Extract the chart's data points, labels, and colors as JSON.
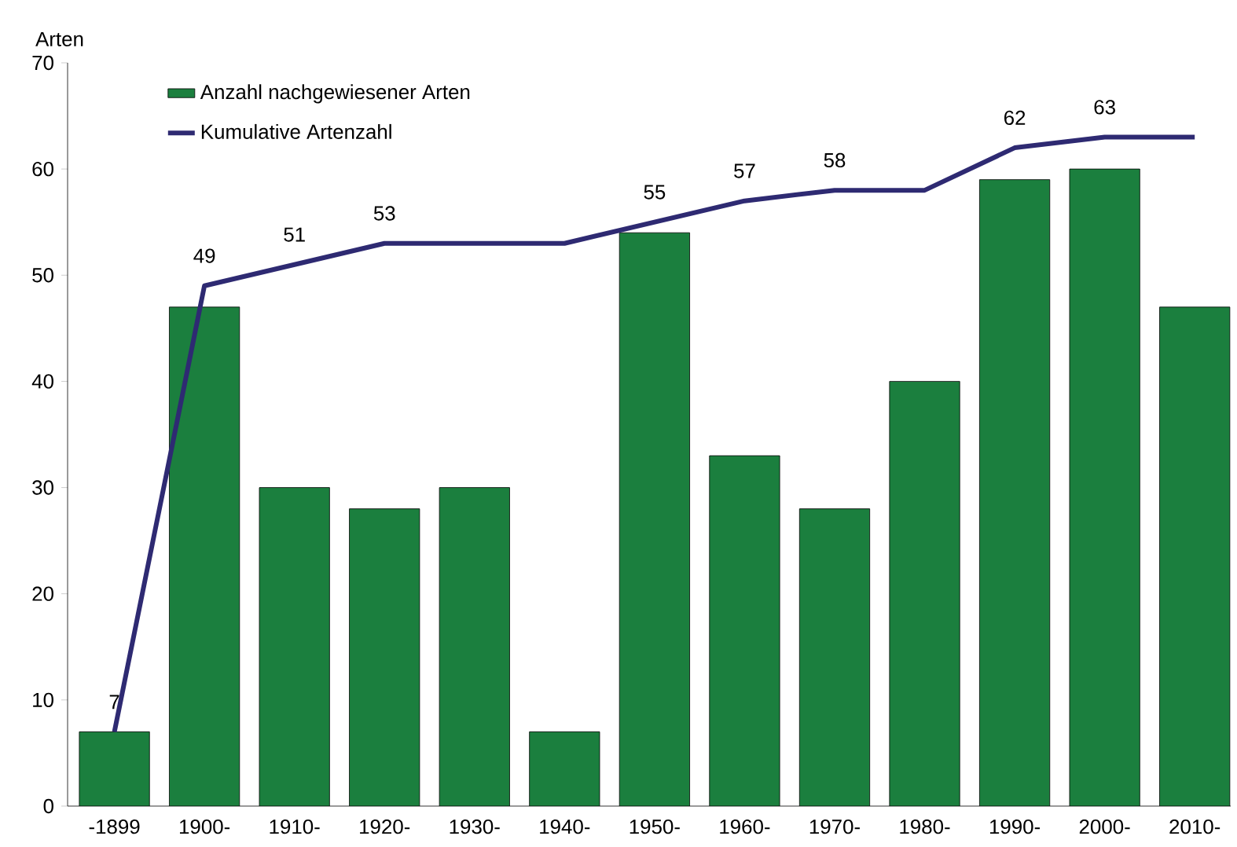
{
  "chart_data": {
    "type": "bar",
    "ylabel": "Arten",
    "categories": [
      "-1899",
      "1900-",
      "1910-",
      "1920-",
      "1930-",
      "1940-",
      "1950-",
      "1960-",
      "1970-",
      "1980-",
      "1990-",
      "2000-",
      "2010-"
    ],
    "ylim": [
      0,
      70
    ],
    "yticks": [
      0,
      10,
      20,
      30,
      40,
      50,
      60,
      70
    ],
    "legend": "top left",
    "series": [
      {
        "name": "Anzahl nachgewiesener Arten",
        "color": "#1b7f3e",
        "values": [
          7,
          47,
          30,
          28,
          30,
          7,
          54,
          33,
          28,
          40,
          59,
          60,
          47
        ]
      },
      {
        "name": "Kumulative Artenzahl",
        "type": "line",
        "color": "#2e2a72",
        "values": [
          7,
          49,
          51,
          53,
          53,
          53,
          55,
          57,
          58,
          58,
          62,
          63,
          63
        ],
        "value_labels": [
          "7",
          "49",
          "51",
          "53",
          null,
          null,
          "55",
          "57",
          "58",
          null,
          "62",
          "63",
          null
        ]
      }
    ]
  }
}
